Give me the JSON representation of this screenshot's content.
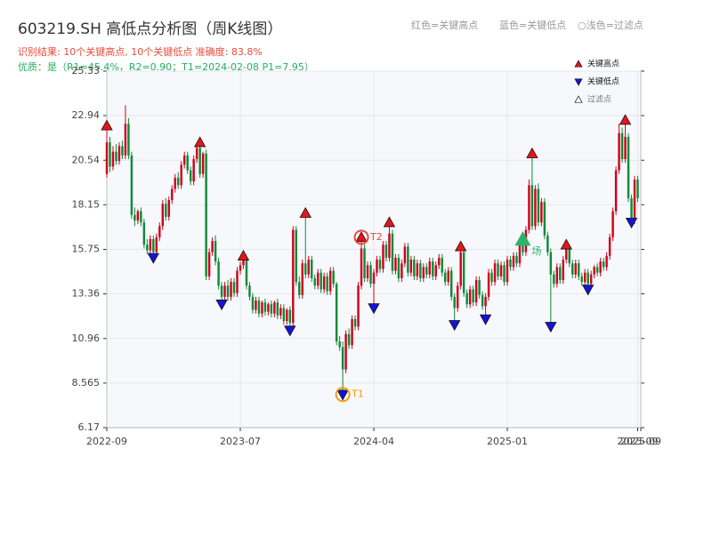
{
  "chart_data": {
    "type": "candlestick",
    "title": "603219.SH 高低点分析图（周K线图）",
    "subtitle": "识别结果: 10个关键高点, 10个关键低点   准确度: 83.8%",
    "note": "优质：是（R1=45.4%，R2=0.90；T1=2024-02-08 P1=7.95）",
    "header_legend": [
      "红色=关键高点",
      "蓝色=关键低点",
      "○浅色=过滤点"
    ],
    "up_color": "#d0021b",
    "down_color": "#0e8a38",
    "open": [
      19.8,
      21.5,
      20.2,
      21.0,
      20.5,
      21.3,
      20.8,
      22.5,
      20.8,
      17.6,
      17.3,
      17.8,
      17.2,
      16.0,
      15.7,
      16.3,
      15.6,
      16.4,
      17.0,
      18.2,
      17.5,
      18.4,
      19.0,
      19.6,
      19.2,
      20.3,
      20.8,
      20.0,
      19.4,
      20.6,
      21.2,
      19.8,
      20.9,
      14.3,
      15.6,
      16.2,
      15.1,
      13.8,
      13.2,
      13.8,
      13.2,
      14.0,
      13.4,
      14.6,
      14.9,
      15.2,
      13.8,
      13.2,
      12.5,
      13.0,
      12.3,
      12.9,
      12.4,
      12.8,
      12.3,
      12.9,
      12.2,
      12.6,
      11.9,
      12.5,
      11.8,
      16.8,
      14.0,
      13.3,
      15.0,
      14.4,
      15.2,
      14.2,
      13.8,
      14.5,
      13.6,
      14.3,
      13.5,
      14.6,
      13.9,
      10.8,
      10.5,
      9.3,
      11.2,
      10.6,
      12.0,
      11.6,
      13.8,
      15.8,
      14.2,
      14.9,
      13.9,
      14.5,
      15.2,
      14.7,
      16.0,
      15.3,
      16.6,
      14.6,
      15.3,
      14.2,
      15.0,
      15.9,
      14.5,
      15.2,
      14.3,
      15.0,
      14.2,
      14.8,
      14.4,
      15.1,
      14.3,
      14.9,
      15.3,
      14.5,
      14.0,
      14.6,
      13.2,
      12.6,
      13.8,
      15.6,
      13.4,
      12.8,
      13.6,
      12.9,
      14.1,
      13.3,
      12.7,
      13.2,
      14.5,
      14.0,
      15.0,
      14.3,
      14.9,
      14.0,
      15.2,
      14.8,
      15.4,
      15.0,
      16.0,
      15.6,
      16.8,
      19.2,
      17.0,
      19.0,
      17.2,
      18.3,
      16.5,
      15.6,
      14.4,
      13.9,
      14.8,
      14.1,
      15.2,
      15.8,
      15.0,
      14.4,
      15.0,
      14.3,
      14.0,
      14.5,
      13.9,
      14.4,
      14.8,
      14.5,
      15.1,
      14.8,
      15.4,
      16.4,
      17.8,
      20.0,
      22.0,
      20.6,
      21.8,
      18.5,
      17.3,
      19.5
    ],
    "high": [
      22.4,
      21.8,
      21.3,
      21.4,
      21.5,
      21.6,
      23.5,
      22.8,
      21.0,
      18.0,
      17.9,
      18.0,
      17.4,
      16.3,
      16.5,
      16.5,
      16.6,
      17.2,
      18.4,
      18.5,
      18.6,
      19.2,
      19.8,
      19.9,
      20.5,
      21.0,
      21.0,
      20.2,
      20.8,
      21.3,
      21.5,
      21.0,
      21.1,
      15.8,
      16.4,
      16.5,
      15.3,
      14.0,
      14.0,
      14.1,
      14.2,
      14.2,
      14.8,
      15.1,
      15.4,
      15.3,
      14.0,
      13.4,
      13.2,
      13.2,
      13.0,
      13.1,
      12.9,
      13.0,
      13.0,
      13.1,
      12.8,
      12.8,
      12.6,
      12.7,
      17.0,
      17.0,
      14.3,
      15.2,
      17.7,
      15.4,
      15.4,
      14.4,
      14.7,
      14.7,
      14.5,
      14.5,
      14.8,
      14.8,
      14.0,
      11.1,
      10.8,
      11.4,
      11.5,
      12.2,
      12.2,
      14.0,
      16.4,
      16.0,
      15.1,
      15.1,
      14.7,
      15.4,
      15.4,
      16.2,
      16.2,
      17.2,
      16.8,
      15.5,
      15.5,
      15.2,
      16.1,
      16.1,
      15.4,
      15.4,
      15.2,
      15.2,
      15.0,
      15.0,
      15.3,
      15.3,
      15.1,
      15.5,
      15.5,
      14.7,
      14.8,
      14.8,
      13.4,
      14.0,
      15.9,
      15.8,
      13.6,
      13.8,
      13.8,
      14.3,
      14.3,
      13.5,
      13.4,
      14.7,
      14.7,
      15.2,
      15.2,
      15.1,
      15.1,
      15.4,
      15.4,
      15.6,
      15.6,
      16.2,
      16.3,
      17.0,
      19.5,
      20.9,
      19.2,
      19.3,
      18.5,
      18.5,
      16.7,
      15.8,
      14.6,
      15.0,
      15.0,
      15.4,
      16.0,
      16.0,
      15.2,
      15.2,
      15.2,
      14.5,
      14.7,
      14.7,
      14.6,
      14.9,
      15.0,
      15.3,
      15.3,
      15.6,
      16.6,
      18.0,
      20.2,
      22.5,
      22.3,
      22.7,
      22.0,
      18.7,
      19.7,
      19.7
    ],
    "low": [
      19.6,
      19.9,
      20.0,
      20.3,
      20.3,
      20.6,
      20.6,
      20.6,
      17.4,
      17.0,
      17.1,
      17.0,
      15.8,
      15.5,
      15.5,
      15.3,
      15.4,
      16.2,
      16.8,
      17.3,
      17.3,
      18.2,
      18.8,
      19.0,
      19.0,
      20.1,
      19.8,
      19.2,
      19.2,
      20.4,
      19.6,
      19.6,
      14.1,
      14.1,
      15.4,
      14.9,
      13.6,
      12.8,
      13.0,
      13.0,
      13.0,
      13.2,
      13.2,
      14.4,
      14.7,
      13.6,
      13.0,
      12.3,
      12.3,
      12.1,
      12.1,
      12.2,
      12.2,
      12.1,
      12.1,
      12.0,
      12.0,
      11.7,
      11.7,
      11.4,
      11.6,
      13.8,
      13.1,
      13.1,
      14.2,
      14.2,
      14.0,
      13.6,
      13.6,
      13.4,
      13.4,
      13.3,
      13.3,
      13.7,
      10.6,
      10.3,
      7.95,
      9.1,
      10.4,
      10.4,
      11.4,
      11.4,
      13.6,
      14.0,
      14.0,
      13.7,
      12.6,
      14.3,
      14.5,
      14.5,
      15.1,
      15.1,
      14.4,
      14.4,
      14.0,
      14.0,
      14.8,
      14.3,
      14.3,
      14.1,
      14.1,
      14.0,
      14.0,
      14.2,
      14.2,
      14.1,
      14.1,
      14.7,
      14.3,
      13.8,
      13.8,
      13.0,
      11.7,
      12.4,
      13.6,
      13.2,
      12.6,
      12.6,
      12.7,
      12.7,
      13.1,
      12.5,
      12.0,
      13.0,
      13.8,
      13.8,
      14.1,
      14.1,
      13.8,
      13.8,
      14.6,
      14.6,
      14.8,
      14.8,
      15.4,
      15.4,
      16.6,
      16.8,
      16.8,
      17.0,
      17.0,
      16.3,
      15.4,
      11.6,
      13.7,
      13.7,
      13.9,
      13.9,
      15.0,
      14.8,
      14.2,
      14.2,
      14.1,
      13.8,
      13.8,
      13.6,
      13.7,
      14.2,
      14.3,
      14.3,
      14.6,
      14.6,
      15.2,
      16.2,
      17.6,
      19.8,
      20.4,
      20.4,
      18.3,
      17.2,
      17.1,
      18.3
    ],
    "close": [
      21.5,
      20.2,
      21.0,
      20.5,
      21.3,
      20.8,
      22.5,
      20.8,
      17.6,
      17.3,
      17.8,
      17.2,
      16.0,
      15.7,
      16.3,
      15.6,
      16.4,
      17.0,
      18.2,
      17.5,
      18.4,
      19.0,
      19.6,
      19.2,
      20.3,
      20.8,
      20.0,
      19.4,
      20.6,
      21.2,
      19.8,
      20.9,
      14.3,
      15.6,
      16.2,
      15.1,
      13.8,
      13.2,
      13.8,
      13.2,
      14.0,
      13.4,
      14.6,
      14.9,
      15.2,
      13.8,
      13.2,
      12.5,
      13.0,
      12.3,
      12.9,
      12.4,
      12.8,
      12.3,
      12.9,
      12.2,
      12.6,
      11.9,
      12.5,
      11.8,
      16.8,
      14.0,
      13.3,
      15.0,
      14.4,
      15.2,
      14.2,
      13.8,
      14.5,
      13.6,
      14.3,
      13.5,
      14.6,
      13.9,
      10.8,
      10.5,
      9.3,
      11.2,
      10.6,
      12.0,
      11.6,
      13.8,
      15.8,
      14.2,
      14.9,
      13.9,
      14.5,
      15.2,
      14.7,
      16.0,
      15.3,
      16.6,
      14.6,
      15.3,
      14.2,
      15.0,
      15.9,
      14.5,
      15.2,
      14.3,
      15.0,
      14.2,
      14.8,
      14.4,
      15.1,
      14.3,
      14.9,
      15.3,
      14.5,
      14.0,
      14.6,
      13.2,
      12.6,
      13.8,
      15.6,
      13.4,
      12.8,
      13.6,
      12.9,
      14.1,
      13.3,
      12.7,
      13.2,
      14.5,
      14.0,
      15.0,
      14.3,
      14.9,
      14.0,
      15.2,
      14.8,
      15.4,
      15.0,
      16.0,
      15.6,
      16.8,
      19.2,
      17.0,
      19.0,
      17.2,
      18.3,
      16.5,
      15.6,
      14.4,
      13.9,
      14.8,
      14.1,
      15.2,
      15.8,
      15.0,
      14.4,
      15.0,
      14.3,
      14.0,
      14.5,
      13.9,
      14.4,
      14.8,
      14.5,
      15.1,
      14.8,
      15.4,
      16.4,
      17.8,
      20.0,
      22.0,
      20.6,
      21.8,
      18.5,
      17.3,
      19.5,
      18.5
    ],
    "series": [
      {
        "name": "关键高点",
        "color": "#e8141b",
        "marker": "up",
        "x": [
          0,
          30,
          44,
          64,
          82,
          91,
          114,
          137,
          148,
          167
        ],
        "values": [
          22.4,
          21.5,
          15.4,
          17.7,
          16.4,
          17.2,
          15.9,
          20.9,
          16.0,
          22.7
        ]
      },
      {
        "name": "关键低点",
        "color": "#1414d8",
        "marker": "down",
        "x": [
          15,
          37,
          59,
          76,
          86,
          112,
          122,
          143,
          155,
          169
        ],
        "values": [
          15.3,
          12.8,
          11.4,
          7.95,
          12.6,
          11.7,
          12.0,
          11.6,
          13.6,
          17.2
        ]
      },
      {
        "name": "过滤点",
        "color": "#2db36b",
        "marker": "up",
        "x": [
          134
        ],
        "values": [
          16.3
        ]
      }
    ],
    "annotations": [
      {
        "text": "T1",
        "x": 76,
        "y": 7.95,
        "color": "#f39c12"
      },
      {
        "text": "T2",
        "x": 82,
        "y": 16.4,
        "color": "#e74c3c"
      },
      {
        "text": "场",
        "x": 134,
        "y": 16.3,
        "color": "#2db36b"
      }
    ],
    "xlim": [
      0,
      172
    ],
    "xticks": [
      {
        "value": 0,
        "label": "2022-09"
      },
      {
        "value": 43,
        "label": "2023-07"
      },
      {
        "value": 86,
        "label": "2024-04"
      },
      {
        "value": 129,
        "label": "2025-01"
      },
      {
        "value": 171,
        "label": "2025-09"
      },
      {
        "value": 172,
        "label": "2025-09"
      }
    ],
    "ylim": [
      6.17,
      25.33
    ],
    "yticks": [
      6.17,
      8.565,
      10.96,
      13.36,
      15.75,
      18.15,
      20.54,
      22.94,
      25.33
    ],
    "grid": true
  }
}
